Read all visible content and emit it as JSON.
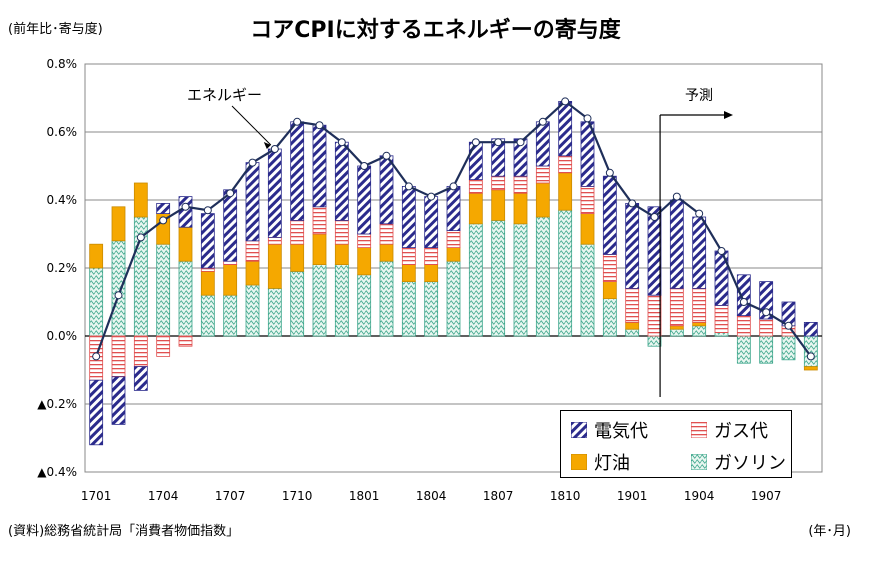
{
  "unit_label": "(前年比･寄与度)",
  "title": "コアCPIに対するエネルギーの寄与度",
  "source": "(資料)総務省統計局「消費者物価指数」",
  "x_unit": "(年･月)",
  "annotation_energy": "エネルギー",
  "annotation_forecast": "予測",
  "legend": {
    "electricity": "電気代",
    "gas": "ガス代",
    "kerosene": "灯油",
    "gasoline": "ガソリン"
  },
  "colors": {
    "electricity": "#2b2b8c",
    "gas": "#e05050",
    "kerosene": "#f5a800",
    "gasoline": "#3aa58a",
    "line": "#1f2f5a"
  },
  "chart_data": {
    "type": "bar",
    "stacked": true,
    "y_tick_labels": [
      "▲0.4%",
      "▲0.2%",
      "0.0%",
      "0.2%",
      "0.4%",
      "0.6%",
      "0.8%"
    ],
    "y_ticks": [
      -0.4,
      -0.2,
      0.0,
      0.2,
      0.4,
      0.6,
      0.8
    ],
    "ylim": [
      -0.4,
      0.8
    ],
    "x_tick_labels": [
      "1701",
      "1704",
      "1707",
      "1710",
      "1801",
      "1804",
      "1807",
      "1810",
      "1901",
      "1904",
      "1907"
    ],
    "categories": [
      "1701",
      "1702",
      "1703",
      "1704",
      "1705",
      "1706",
      "1707",
      "1708",
      "1709",
      "1710",
      "1711",
      "1712",
      "1801",
      "1802",
      "1803",
      "1804",
      "1805",
      "1806",
      "1807",
      "1808",
      "1809",
      "1810",
      "1811",
      "1812",
      "1901",
      "1902",
      "1903",
      "1904",
      "1905",
      "1906",
      "1907",
      "1908",
      "1909"
    ],
    "series": [
      {
        "name": "ガソリン",
        "key": "gasoline",
        "values": [
          0.2,
          0.28,
          0.35,
          0.27,
          0.22,
          0.12,
          0.12,
          0.15,
          0.14,
          0.19,
          0.21,
          0.21,
          0.18,
          0.22,
          0.16,
          0.16,
          0.22,
          0.33,
          0.34,
          0.33,
          0.35,
          0.37,
          0.27,
          0.11,
          0.02,
          -0.03,
          0.02,
          0.03,
          0.01,
          -0.08,
          -0.08,
          -0.07,
          -0.09
        ]
      },
      {
        "name": "灯油",
        "key": "kerosene",
        "values": [
          0.07,
          0.1,
          0.1,
          0.09,
          0.1,
          0.07,
          0.09,
          0.07,
          0.13,
          0.08,
          0.09,
          0.06,
          0.08,
          0.05,
          0.05,
          0.05,
          0.04,
          0.09,
          0.09,
          0.09,
          0.1,
          0.11,
          0.09,
          0.05,
          0.02,
          0.0,
          0.01,
          0.01,
          0.0,
          0.0,
          0.0,
          0.0,
          -0.01
        ]
      },
      {
        "name": "ガス代",
        "key": "gas",
        "values": [
          -0.13,
          -0.12,
          -0.09,
          -0.06,
          -0.03,
          0.01,
          0.01,
          0.06,
          0.02,
          0.07,
          0.08,
          0.07,
          0.04,
          0.06,
          0.05,
          0.05,
          0.05,
          0.04,
          0.04,
          0.05,
          0.05,
          0.05,
          0.08,
          0.08,
          0.1,
          0.12,
          0.11,
          0.1,
          0.08,
          0.06,
          0.05,
          0.03,
          0.0
        ]
      },
      {
        "name": "電気代",
        "key": "electricity",
        "values": [
          -0.19,
          -0.14,
          -0.07,
          0.03,
          0.09,
          0.16,
          0.21,
          0.23,
          0.26,
          0.29,
          0.24,
          0.23,
          0.2,
          0.2,
          0.18,
          0.15,
          0.13,
          0.11,
          0.11,
          0.11,
          0.13,
          0.16,
          0.19,
          0.23,
          0.25,
          0.26,
          0.26,
          0.21,
          0.16,
          0.12,
          0.11,
          0.07,
          0.04
        ]
      }
    ],
    "line": {
      "name": "エネルギー",
      "values": [
        -0.06,
        0.12,
        0.29,
        0.34,
        0.38,
        0.37,
        0.42,
        0.51,
        0.55,
        0.63,
        0.62,
        0.57,
        0.5,
        0.53,
        0.44,
        0.41,
        0.44,
        0.57,
        0.57,
        0.57,
        0.63,
        0.69,
        0.64,
        0.48,
        0.39,
        0.35,
        0.41,
        0.36,
        0.25,
        0.1,
        0.07,
        0.03,
        -0.06
      ]
    },
    "forecast_start": "1902"
  }
}
